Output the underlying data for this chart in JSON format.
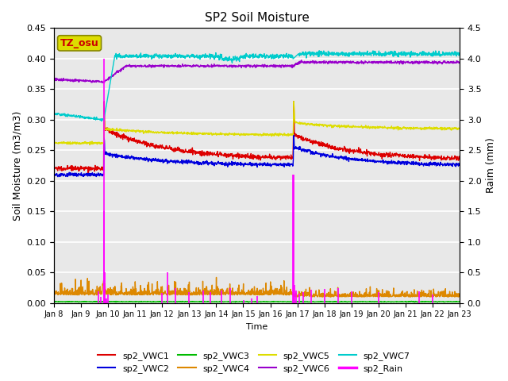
{
  "title": "SP2 Soil Moisture",
  "ylabel_left": "Soil Moisture (m3/m3)",
  "ylabel_right": "Raim (mm)",
  "xlabel": "Time",
  "ylim_left": [
    0,
    0.45
  ],
  "ylim_right": [
    0,
    4.5
  ],
  "yticks_left": [
    0.0,
    0.05,
    0.1,
    0.15,
    0.2,
    0.25,
    0.3,
    0.35,
    0.4,
    0.45
  ],
  "yticks_right": [
    0.0,
    0.5,
    1.0,
    1.5,
    2.0,
    2.5,
    3.0,
    3.5,
    4.0,
    4.5
  ],
  "xtick_labels": [
    "Jan 8",
    "Jan 9",
    "Jan 10",
    "Jan 11",
    "Jan 12",
    "Jan 13",
    "Jan 14",
    "Jan 15",
    "Jan 16",
    "Jan 17",
    "Jan 18",
    "Jan 19",
    "Jan 20",
    "Jan 21",
    "Jan 22",
    "Jan 23"
  ],
  "colors": {
    "sp2_VWC1": "#dd0000",
    "sp2_VWC2": "#0000dd",
    "sp2_VWC3": "#00bb00",
    "sp2_VWC4": "#dd8800",
    "sp2_VWC5": "#dddd00",
    "sp2_VWC6": "#9900cc",
    "sp2_VWC7": "#00cccc",
    "sp2_Rain": "#ff00ff"
  },
  "background_color": "#e8e8e8",
  "annotation_text": "TZ_osu",
  "annotation_bg": "#dddd00",
  "annotation_fg": "#cc0000"
}
